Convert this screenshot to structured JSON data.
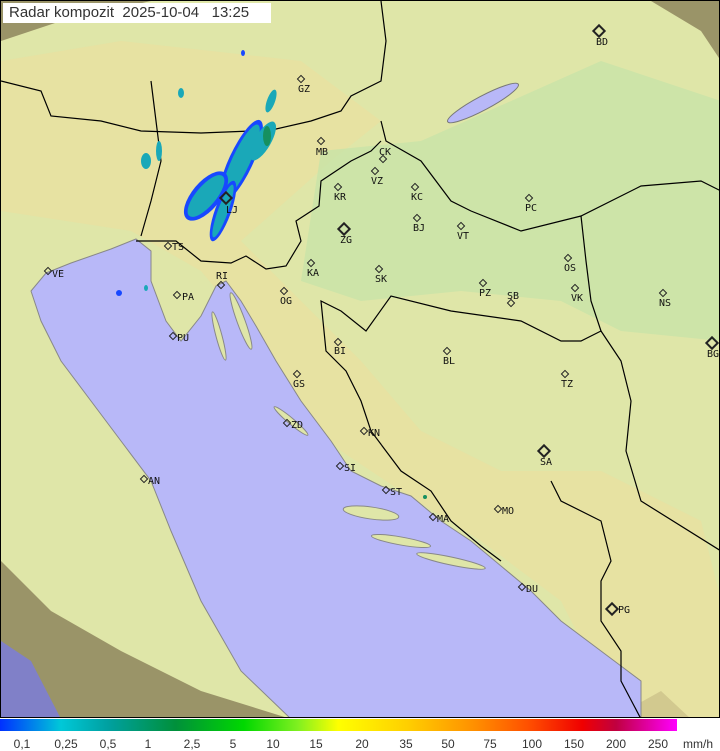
{
  "title": "Radar kompozit  2025-10-04   13:25",
  "map": {
    "colors": {
      "sea": "#b8b8f8",
      "land": "#dfe6a8",
      "outside": "#9a9468",
      "border": "#000000",
      "coast": "#888888",
      "rain_light": "#1aa8b8",
      "rain_edge": "#1848ff",
      "rain_mid": "#169060"
    },
    "cities": [
      {
        "code": "GZ",
        "marker": "minor"
      },
      {
        "code": "BD",
        "marker": "major"
      },
      {
        "code": "MB",
        "marker": "minor"
      },
      {
        "code": "CK",
        "marker": "minor"
      },
      {
        "code": "VZ",
        "marker": "minor"
      },
      {
        "code": "KR",
        "marker": "minor"
      },
      {
        "code": "KC",
        "marker": "minor"
      },
      {
        "code": "PC",
        "marker": "minor"
      },
      {
        "code": "LJ",
        "marker": "major"
      },
      {
        "code": "BJ",
        "marker": "minor"
      },
      {
        "code": "VT",
        "marker": "minor"
      },
      {
        "code": "ZG",
        "marker": "major"
      },
      {
        "code": "TS",
        "marker": "minor"
      },
      {
        "code": "VE",
        "marker": "minor"
      },
      {
        "code": "KA",
        "marker": "minor"
      },
      {
        "code": "SK",
        "marker": "minor"
      },
      {
        "code": "OS",
        "marker": "minor"
      },
      {
        "code": "RI",
        "marker": "minor"
      },
      {
        "code": "PA",
        "marker": "minor"
      },
      {
        "code": "OG",
        "marker": "minor"
      },
      {
        "code": "PZ",
        "marker": "minor"
      },
      {
        "code": "SB",
        "marker": "minor"
      },
      {
        "code": "VK",
        "marker": "minor"
      },
      {
        "code": "NS",
        "marker": "minor"
      },
      {
        "code": "PU",
        "marker": "minor"
      },
      {
        "code": "BI",
        "marker": "minor"
      },
      {
        "code": "BL",
        "marker": "minor"
      },
      {
        "code": "BG",
        "marker": "major"
      },
      {
        "code": "GS",
        "marker": "minor"
      },
      {
        "code": "TZ",
        "marker": "minor"
      },
      {
        "code": "ZD",
        "marker": "minor"
      },
      {
        "code": "KN",
        "marker": "minor"
      },
      {
        "code": "SA",
        "marker": "major"
      },
      {
        "code": "SI",
        "marker": "minor"
      },
      {
        "code": "ST",
        "marker": "minor"
      },
      {
        "code": "AN",
        "marker": "minor"
      },
      {
        "code": "MA",
        "marker": "minor"
      },
      {
        "code": "MO",
        "marker": "minor"
      },
      {
        "code": "DU",
        "marker": "minor"
      },
      {
        "code": "PG",
        "marker": "major"
      }
    ]
  },
  "legend": {
    "labels": [
      "0,1",
      "0,25",
      "0,5",
      "1",
      "2,5",
      "5",
      "10",
      "15",
      "20",
      "35",
      "50",
      "75",
      "100",
      "150",
      "200",
      "250"
    ],
    "unit": "mm/h"
  }
}
